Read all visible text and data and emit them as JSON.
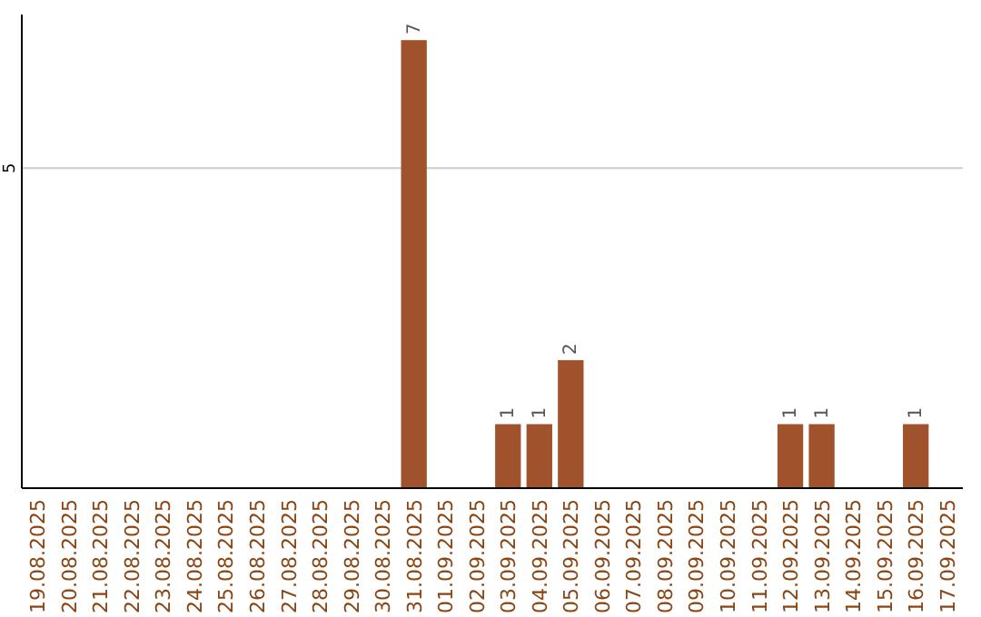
{
  "chart_data": {
    "type": "bar",
    "categories": [
      "19.08.2025",
      "20.08.2025",
      "21.08.2025",
      "22.08.2025",
      "23.08.2025",
      "24.08.2025",
      "25.08.2025",
      "26.08.2025",
      "27.08.2025",
      "28.08.2025",
      "29.08.2025",
      "30.08.2025",
      "31.08.2025",
      "01.09.2025",
      "02.09.2025",
      "03.09.2025",
      "04.09.2025",
      "05.09.2025",
      "06.09.2025",
      "07.09.2025",
      "08.09.2025",
      "09.09.2025",
      "10.09.2025",
      "11.09.2025",
      "12.09.2025",
      "13.09.2025",
      "14.09.2025",
      "15.09.2025",
      "16.09.2025",
      "17.09.2025"
    ],
    "values": [
      null,
      null,
      null,
      null,
      null,
      null,
      null,
      null,
      null,
      null,
      null,
      null,
      7,
      null,
      null,
      1,
      1,
      2,
      null,
      null,
      null,
      null,
      null,
      null,
      1,
      1,
      null,
      null,
      1,
      null
    ],
    "ylim": [
      0,
      7.4
    ],
    "ref_lines": [
      {
        "axis": "y",
        "value": 5,
        "label": "5",
        "color": "#cccccc"
      }
    ],
    "value_labels": [
      null,
      null,
      null,
      null,
      null,
      null,
      null,
      null,
      null,
      null,
      null,
      null,
      "7",
      null,
      null,
      "1",
      "1",
      "2",
      null,
      null,
      null,
      null,
      null,
      null,
      "1",
      "1",
      null,
      null,
      "1",
      null
    ],
    "color": "#a0522d"
  }
}
